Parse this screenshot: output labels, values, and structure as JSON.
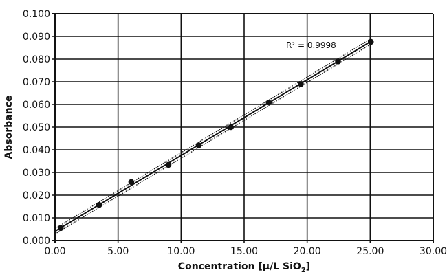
{
  "chart_data": {
    "type": "scatter",
    "title": "",
    "xlabel": "Concentration [µ/L SiO",
    "xlabel_subscript": "2",
    "xlabel_close": "]",
    "ylabel": "Absorbance",
    "xlim": [
      0,
      30
    ],
    "ylim": [
      0,
      0.1
    ],
    "grid": true,
    "x_ticks": [
      "0.00",
      "5.00",
      "10.00",
      "15.00",
      "20.00",
      "25.00",
      "30.00"
    ],
    "y_ticks": [
      "0.000",
      "0.010",
      "0.020",
      "0.030",
      "0.040",
      "0.050",
      "0.060",
      "0.070",
      "0.080",
      "0.090",
      "0.100"
    ],
    "points": {
      "x": [
        0.45,
        3.5,
        6.05,
        9.0,
        11.4,
        13.95,
        16.95,
        19.5,
        22.45,
        25.05
      ],
      "y": [
        0.0055,
        0.0157,
        0.0258,
        0.0334,
        0.042,
        0.05,
        0.0608,
        0.069,
        0.079,
        0.0876
      ]
    },
    "fit": {
      "slope": 0.00334,
      "intercept": 0.0041,
      "x_range": [
        0,
        25.05
      ],
      "band": 0.0012
    },
    "annotation": "R² = 0.9998",
    "colors": {
      "marks": "#111111",
      "grid": "#111111"
    }
  }
}
